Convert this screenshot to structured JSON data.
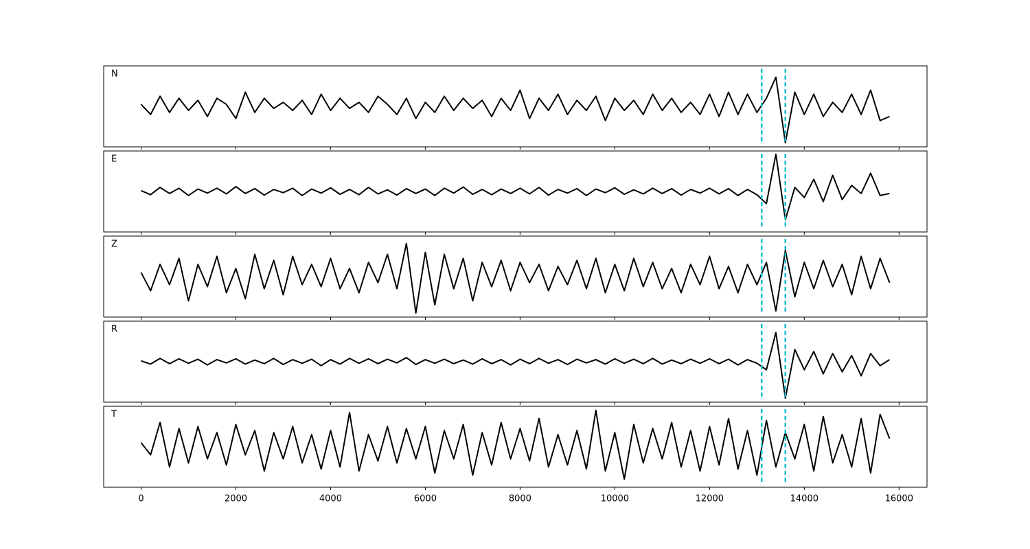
{
  "chart_data": {
    "type": "line",
    "x": [
      0,
      200,
      400,
      600,
      800,
      1000,
      1200,
      1400,
      1600,
      1800,
      2000,
      2200,
      2400,
      2600,
      2800,
      3000,
      3200,
      3400,
      3600,
      3800,
      4000,
      4200,
      4400,
      4600,
      4800,
      5000,
      5200,
      5400,
      5600,
      5800,
      6000,
      6200,
      6400,
      6600,
      6800,
      7000,
      7200,
      7400,
      7600,
      7800,
      8000,
      8200,
      8400,
      8600,
      8800,
      9000,
      9200,
      9400,
      9600,
      9800,
      10000,
      10200,
      10400,
      10600,
      10800,
      11000,
      11200,
      11400,
      11600,
      11800,
      12000,
      12200,
      12400,
      12600,
      12800,
      13000,
      13200,
      13400,
      13600,
      13800,
      14000,
      14200,
      14400,
      14600,
      14800,
      15000,
      15200,
      15400,
      15600,
      15800
    ],
    "xlim": [
      -790,
      16590
    ],
    "xticks": [
      0,
      2000,
      4000,
      6000,
      8000,
      10000,
      12000,
      14000,
      16000
    ],
    "ylim": [
      -1,
      1
    ],
    "vlines": [
      13100,
      13600
    ],
    "vline_color": "#17becf",
    "series": [
      {
        "name": "N",
        "color": "#000000",
        "values": [
          0.05,
          -0.2,
          0.25,
          -0.15,
          0.2,
          -0.1,
          0.15,
          -0.25,
          0.2,
          0.05,
          -0.3,
          0.35,
          -0.15,
          0.2,
          -0.05,
          0.1,
          -0.1,
          0.15,
          -0.2,
          0.3,
          -0.1,
          0.2,
          -0.05,
          0.1,
          -0.15,
          0.25,
          0.05,
          -0.2,
          0.2,
          -0.3,
          0.1,
          -0.15,
          0.25,
          -0.1,
          0.2,
          -0.05,
          0.15,
          -0.25,
          0.2,
          -0.1,
          0.4,
          -0.3,
          0.2,
          -0.1,
          0.3,
          -0.2,
          0.15,
          -0.1,
          0.25,
          -0.35,
          0.2,
          -0.1,
          0.15,
          -0.2,
          0.3,
          -0.1,
          0.2,
          -0.15,
          0.1,
          -0.2,
          0.3,
          -0.25,
          0.35,
          -0.2,
          0.3,
          -0.15,
          0.2,
          0.72,
          -0.9,
          0.35,
          -0.2,
          0.3,
          -0.25,
          0.1,
          -0.15,
          0.3,
          -0.2,
          0.4,
          -0.35,
          -0.25
        ]
      },
      {
        "name": "E",
        "color": "#000000",
        "values": [
          0.02,
          -0.08,
          0.1,
          -0.05,
          0.08,
          -0.1,
          0.06,
          -0.04,
          0.08,
          -0.06,
          0.12,
          -0.05,
          0.07,
          -0.09,
          0.05,
          -0.03,
          0.08,
          -0.1,
          0.06,
          -0.04,
          0.09,
          -0.07,
          0.05,
          -0.08,
          0.1,
          -0.06,
          0.04,
          -0.09,
          0.07,
          -0.05,
          0.06,
          -0.1,
          0.08,
          -0.04,
          0.11,
          -0.07,
          0.05,
          -0.08,
          0.06,
          -0.05,
          0.08,
          -0.06,
          0.1,
          -0.09,
          0.05,
          -0.04,
          0.07,
          -0.1,
          0.06,
          -0.03,
          0.09,
          -0.07,
          0.04,
          -0.06,
          0.08,
          -0.05,
          0.07,
          -0.09,
          0.05,
          -0.04,
          0.08,
          -0.06,
          0.07,
          -0.1,
          0.05,
          -0.08,
          -0.3,
          0.92,
          -0.7,
          0.1,
          -0.15,
          0.3,
          -0.25,
          0.4,
          -0.2,
          0.15,
          -0.05,
          0.45,
          -0.1,
          -0.05
        ]
      },
      {
        "name": "Z",
        "color": "#000000",
        "values": [
          0.1,
          -0.35,
          0.3,
          -0.2,
          0.45,
          -0.6,
          0.3,
          -0.25,
          0.5,
          -0.4,
          0.2,
          -0.55,
          0.55,
          -0.3,
          0.4,
          -0.45,
          0.5,
          -0.2,
          0.3,
          -0.25,
          0.45,
          -0.3,
          0.2,
          -0.4,
          0.35,
          -0.15,
          0.55,
          -0.3,
          0.82,
          -0.9,
          0.6,
          -0.7,
          0.55,
          -0.3,
          0.45,
          -0.6,
          0.35,
          -0.25,
          0.4,
          -0.35,
          0.35,
          -0.15,
          0.3,
          -0.35,
          0.25,
          -0.2,
          0.4,
          -0.3,
          0.45,
          -0.4,
          0.3,
          -0.35,
          0.45,
          -0.25,
          0.35,
          -0.3,
          0.2,
          -0.4,
          0.3,
          -0.2,
          0.5,
          -0.3,
          0.25,
          -0.4,
          0.3,
          -0.2,
          0.35,
          -0.85,
          0.65,
          -0.5,
          0.35,
          -0.3,
          0.4,
          -0.25,
          0.3,
          -0.45,
          0.5,
          -0.3,
          0.45,
          -0.15
        ]
      },
      {
        "name": "R",
        "color": "#000000",
        "values": [
          0.02,
          -0.06,
          0.08,
          -0.05,
          0.07,
          -0.04,
          0.06,
          -0.08,
          0.05,
          -0.03,
          0.07,
          -0.06,
          0.04,
          -0.05,
          0.08,
          -0.07,
          0.05,
          -0.04,
          0.06,
          -0.1,
          0.05,
          -0.06,
          0.08,
          -0.04,
          0.07,
          -0.05,
          0.06,
          -0.03,
          0.1,
          -0.07,
          0.05,
          -0.04,
          0.06,
          -0.05,
          0.04,
          -0.06,
          0.07,
          -0.05,
          0.05,
          -0.08,
          0.06,
          -0.05,
          0.08,
          -0.04,
          0.05,
          -0.07,
          0.06,
          -0.03,
          0.05,
          -0.06,
          0.07,
          -0.04,
          0.06,
          -0.05,
          0.08,
          -0.06,
          0.04,
          -0.05,
          0.06,
          -0.04,
          0.07,
          -0.05,
          0.06,
          -0.08,
          0.05,
          -0.04,
          -0.2,
          0.72,
          -0.9,
          0.3,
          -0.2,
          0.25,
          -0.3,
          0.2,
          -0.25,
          0.15,
          -0.35,
          0.2,
          -0.1,
          0.05
        ]
      },
      {
        "name": "T",
        "color": "#000000",
        "values": [
          0.1,
          -0.2,
          0.6,
          -0.5,
          0.45,
          -0.4,
          0.5,
          -0.3,
          0.35,
          -0.45,
          0.55,
          -0.2,
          0.4,
          -0.6,
          0.35,
          -0.3,
          0.5,
          -0.4,
          0.3,
          -0.55,
          0.4,
          -0.5,
          0.85,
          -0.6,
          0.3,
          -0.35,
          0.5,
          -0.4,
          0.45,
          -0.3,
          0.5,
          -0.65,
          0.4,
          -0.3,
          0.55,
          -0.7,
          0.35,
          -0.45,
          0.6,
          -0.3,
          0.45,
          -0.35,
          0.7,
          -0.5,
          0.3,
          -0.45,
          0.4,
          -0.55,
          0.9,
          -0.6,
          0.35,
          -0.8,
          0.55,
          -0.4,
          0.45,
          -0.3,
          0.6,
          -0.5,
          0.4,
          -0.6,
          0.5,
          -0.45,
          0.7,
          -0.55,
          0.4,
          -0.7,
          0.65,
          -0.5,
          0.35,
          -0.3,
          0.55,
          -0.6,
          0.75,
          -0.4,
          0.3,
          -0.5,
          0.7,
          -0.65,
          0.8,
          0.2
        ]
      }
    ]
  }
}
